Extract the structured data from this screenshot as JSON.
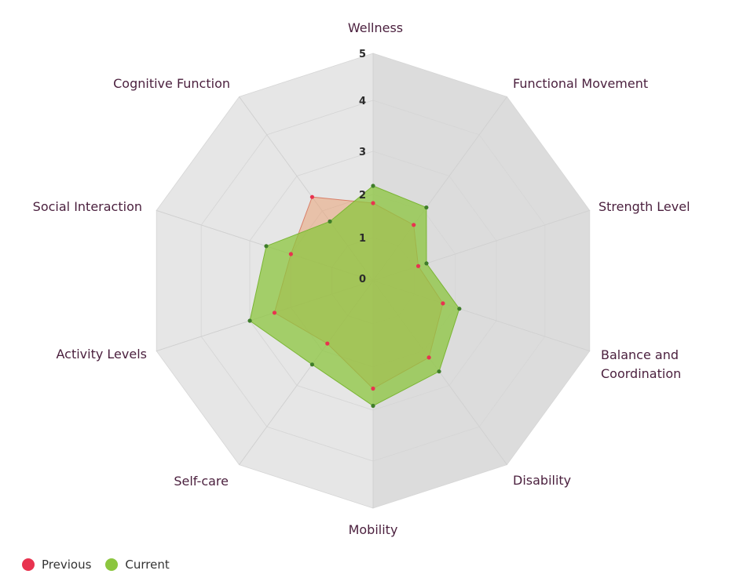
{
  "chart_data": {
    "type": "radar",
    "categories": [
      "Wellness",
      "Functional Movement",
      "Strength Level",
      "Balance and Coordination",
      "Disability",
      "Mobility",
      "Self-care",
      "Activity Levels",
      "Social Interaction",
      "Cognitive Function"
    ],
    "range": [
      0,
      5
    ],
    "ticks": [
      "0",
      "1",
      "2",
      "3",
      "4",
      "5"
    ],
    "series": [
      {
        "name": "Previous",
        "color": "#e8334f",
        "fill": "#e9a277",
        "values": [
          1.8,
          1.6,
          1.1,
          1.7,
          2.2,
          2.5,
          1.8,
          2.4,
          2.0,
          2.4
        ]
      },
      {
        "name": "Current",
        "color": "#8cc63f",
        "fill": "#8cc63f",
        "point": "#3f7d2a",
        "values": [
          2.2,
          2.1,
          1.3,
          2.1,
          2.6,
          2.9,
          2.4,
          3.0,
          2.6,
          1.7
        ]
      }
    ],
    "legend_position": "bottom-left",
    "grid": true
  }
}
